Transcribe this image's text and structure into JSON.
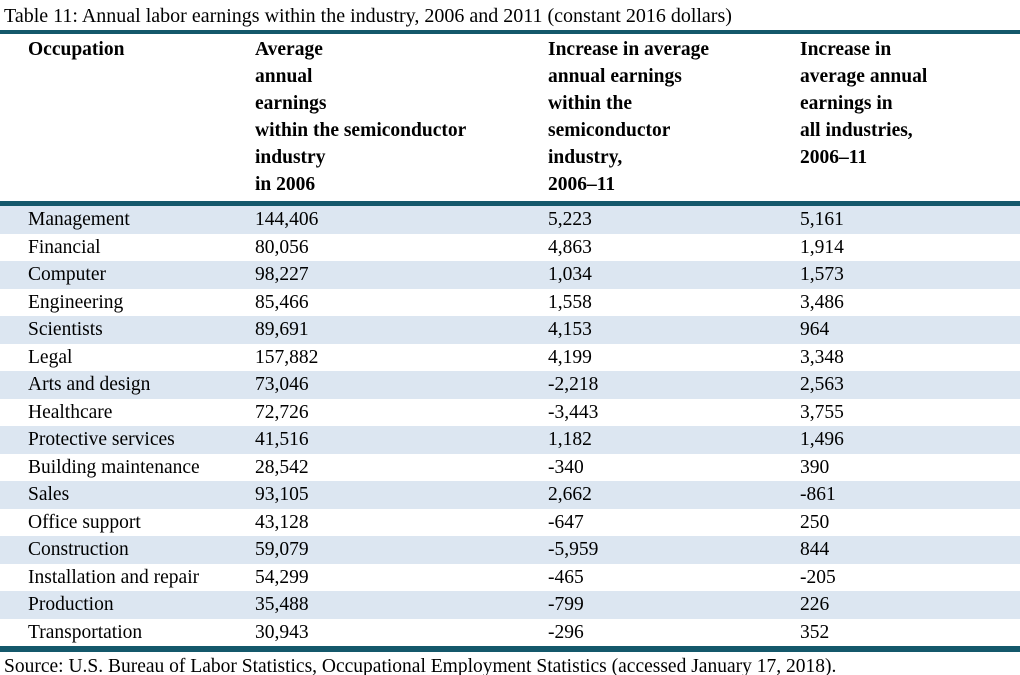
{
  "page": {
    "caption": "Table 11: Annual labor earnings within the industry, 2006 and 2011 (constant 2016 dollars)",
    "source": "Source: U.S. Bureau of Labor Statistics, Occupational Employment Statistics (accessed January 17, 2018)."
  },
  "colors": {
    "rule": "#14586B",
    "row_shade": "#DCE6F1",
    "text": "#000000",
    "background": "#FFFFFF"
  },
  "table": {
    "headers": [
      "Occupation",
      "Average\nannual\nearnings\nwithin the semiconductor\nindustry\nin 2006",
      "Increase in average\nannual earnings\nwithin the\nsemiconductor\nindustry,\n2006–11",
      "Increase in\naverage annual\nearnings in\nall industries,\n2006–11"
    ],
    "rows": [
      [
        "Management",
        "144,406",
        "5,223",
        "5,161"
      ],
      [
        "Financial",
        "80,056",
        "4,863",
        "1,914"
      ],
      [
        "Computer",
        "98,227",
        "1,034",
        "1,573"
      ],
      [
        "Engineering",
        "85,466",
        "1,558",
        "3,486"
      ],
      [
        "Scientists",
        "89,691",
        "4,153",
        "964"
      ],
      [
        "Legal",
        "157,882",
        "4,199",
        "3,348"
      ],
      [
        "Arts and design",
        "73,046",
        "-2,218",
        "2,563"
      ],
      [
        "Healthcare",
        "72,726",
        "-3,443",
        "3,755"
      ],
      [
        "Protective services",
        "41,516",
        "1,182",
        "1,496"
      ],
      [
        "Building maintenance",
        "28,542",
        "-340",
        "390"
      ],
      [
        "Sales",
        "93,105",
        "2,662",
        "-861"
      ],
      [
        "Office support",
        "43,128",
        "-647",
        "250"
      ],
      [
        "Construction",
        "59,079",
        "-5,959",
        "844"
      ],
      [
        "Installation and repair",
        "54,299",
        "-465",
        "-205"
      ],
      [
        "Production",
        "35,488",
        "-799",
        "226"
      ],
      [
        "Transportation",
        "30,943",
        "-296",
        "352"
      ]
    ]
  },
  "chart_data": {
    "type": "table",
    "title": "Table 11: Annual labor earnings within the industry, 2006 and 2011 (constant 2016 dollars)",
    "columns": [
      "Occupation",
      "Average annual earnings within the semiconductor industry in 2006",
      "Increase in average annual earnings within the semiconductor industry, 2006–11",
      "Increase in average annual earnings in all industries, 2006–11"
    ],
    "rows": [
      [
        "Management",
        144406,
        5223,
        5161
      ],
      [
        "Financial",
        80056,
        4863,
        1914
      ],
      [
        "Computer",
        98227,
        1034,
        1573
      ],
      [
        "Engineering",
        85466,
        1558,
        3486
      ],
      [
        "Scientists",
        89691,
        4153,
        964
      ],
      [
        "Legal",
        157882,
        4199,
        3348
      ],
      [
        "Arts and design",
        73046,
        -2218,
        2563
      ],
      [
        "Healthcare",
        72726,
        -3443,
        3755
      ],
      [
        "Protective services",
        41516,
        1182,
        1496
      ],
      [
        "Building maintenance",
        28542,
        -340,
        390
      ],
      [
        "Sales",
        93105,
        2662,
        -861
      ],
      [
        "Office support",
        43128,
        -647,
        250
      ],
      [
        "Construction",
        59079,
        -5959,
        844
      ],
      [
        "Installation and repair",
        54299,
        -465,
        -205
      ],
      [
        "Production",
        35488,
        -799,
        226
      ],
      [
        "Transportation",
        30943,
        -296,
        352
      ]
    ],
    "source": "Source: U.S. Bureau of Labor Statistics, Occupational Employment Statistics (accessed January 17, 2018)."
  }
}
